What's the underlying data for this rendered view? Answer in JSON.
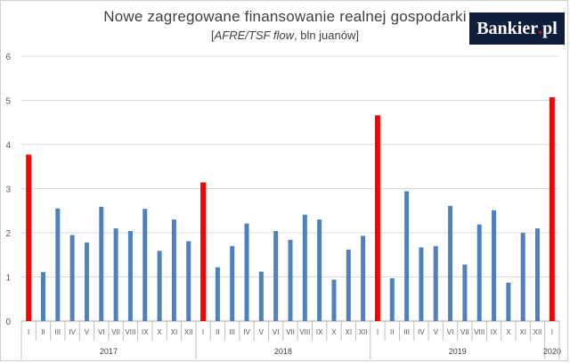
{
  "logo": {
    "text_main": "Bankier",
    "text_dot": ".",
    "text_tail": "pl",
    "dot_color": "#e3051b",
    "bg_color": "#0f1e3d"
  },
  "chart_data": {
    "type": "bar",
    "title": "Nowe zagregowane finansowanie realnej gospodarki",
    "subtitle_prefix": "[",
    "subtitle_italic": "AFRE/TSF flow",
    "subtitle_suffix": ", bln juanów]",
    "ylim": [
      0,
      6
    ],
    "yticks": [
      "0",
      "1",
      "2",
      "3",
      "4",
      "5",
      "6"
    ],
    "grid": true,
    "colors": {
      "regular": "#4f81bd",
      "january": "#ff0000"
    },
    "years": [
      "2017",
      "2018",
      "2019",
      "2020"
    ],
    "categories": [
      "I",
      "II",
      "III",
      "IV",
      "V",
      "VI",
      "VII",
      "VIII",
      "IX",
      "X",
      "XI",
      "XII",
      "I",
      "II",
      "III",
      "IV",
      "V",
      "VI",
      "VII",
      "VIII",
      "IX",
      "X",
      "XI",
      "XII",
      "I",
      "II",
      "III",
      "IV",
      "V",
      "VI",
      "VII",
      "VIII",
      "IX",
      "X",
      "XI",
      "XII",
      "I"
    ],
    "values": [
      3.77,
      1.11,
      2.55,
      1.95,
      1.78,
      2.59,
      2.1,
      2.04,
      2.54,
      1.59,
      2.3,
      1.81,
      3.14,
      1.22,
      1.7,
      2.21,
      1.12,
      2.04,
      1.84,
      2.41,
      2.3,
      0.94,
      1.62,
      1.93,
      4.66,
      0.97,
      2.94,
      1.67,
      1.7,
      2.61,
      1.28,
      2.19,
      2.51,
      0.87,
      2.0,
      2.1,
      5.07
    ],
    "highlight": [
      true,
      false,
      false,
      false,
      false,
      false,
      false,
      false,
      false,
      false,
      false,
      false,
      true,
      false,
      false,
      false,
      false,
      false,
      false,
      false,
      false,
      false,
      false,
      false,
      true,
      false,
      false,
      false,
      false,
      false,
      false,
      false,
      false,
      false,
      false,
      false,
      true
    ]
  }
}
